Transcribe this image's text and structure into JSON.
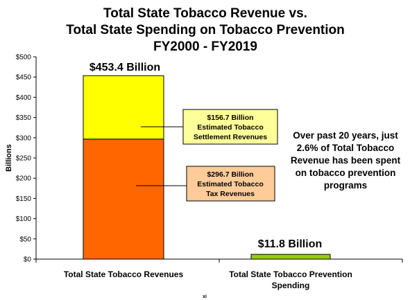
{
  "chart_data": {
    "type": "bar",
    "title_lines": [
      "Total State Tobacco Revenue vs.",
      "Total State Spending on Tobacco Prevention",
      "FY2000 - FY2019"
    ],
    "ylabel": "Billions",
    "xlabel": "",
    "ylim": [
      0,
      500
    ],
    "yticks": [
      "$0",
      "$50",
      "$100",
      "$150",
      "$200",
      "$250",
      "$300",
      "$350",
      "$400",
      "$450",
      "$500"
    ],
    "ytick_values": [
      0,
      50,
      100,
      150,
      200,
      250,
      300,
      350,
      400,
      450,
      500
    ],
    "categories": [
      [
        "Total State Tobacco Revenues"
      ],
      [
        "Total State Tobacco Prevention",
        "Spending"
      ]
    ],
    "series": [
      {
        "values": [
          296.7,
          11.8
        ],
        "color": "#FF6600"
      },
      {
        "values": [
          156.7,
          0
        ],
        "color": "#FFFF00"
      }
    ],
    "bar_colors": {
      "tax": "#FF6600",
      "settlement": "#FFFF00",
      "prevention": "#99CC00"
    },
    "stack_values": {
      "revenues": [
        296.7,
        156.7
      ],
      "prevention": [
        11.8
      ]
    },
    "total_labels": [
      "$453.4 Billion",
      "$11.8 Billion"
    ],
    "annotations": {
      "settlement_box": [
        "$156.7 Billion",
        "Estimated Tobacco",
        "Settlement Revenues"
      ],
      "settlement_box_fill": "#FFFF99",
      "tax_box": [
        "$296.7 Billion",
        "Estimated Tobacco",
        "Tax Revenues"
      ],
      "tax_box_fill": "#FFCC99",
      "note": [
        "Over past 20 years, just",
        "2.6% of Total Tobacco",
        "Revenue has been spent",
        "on tobacco prevention",
        "programs"
      ]
    },
    "grid": false
  },
  "footer": "xi"
}
